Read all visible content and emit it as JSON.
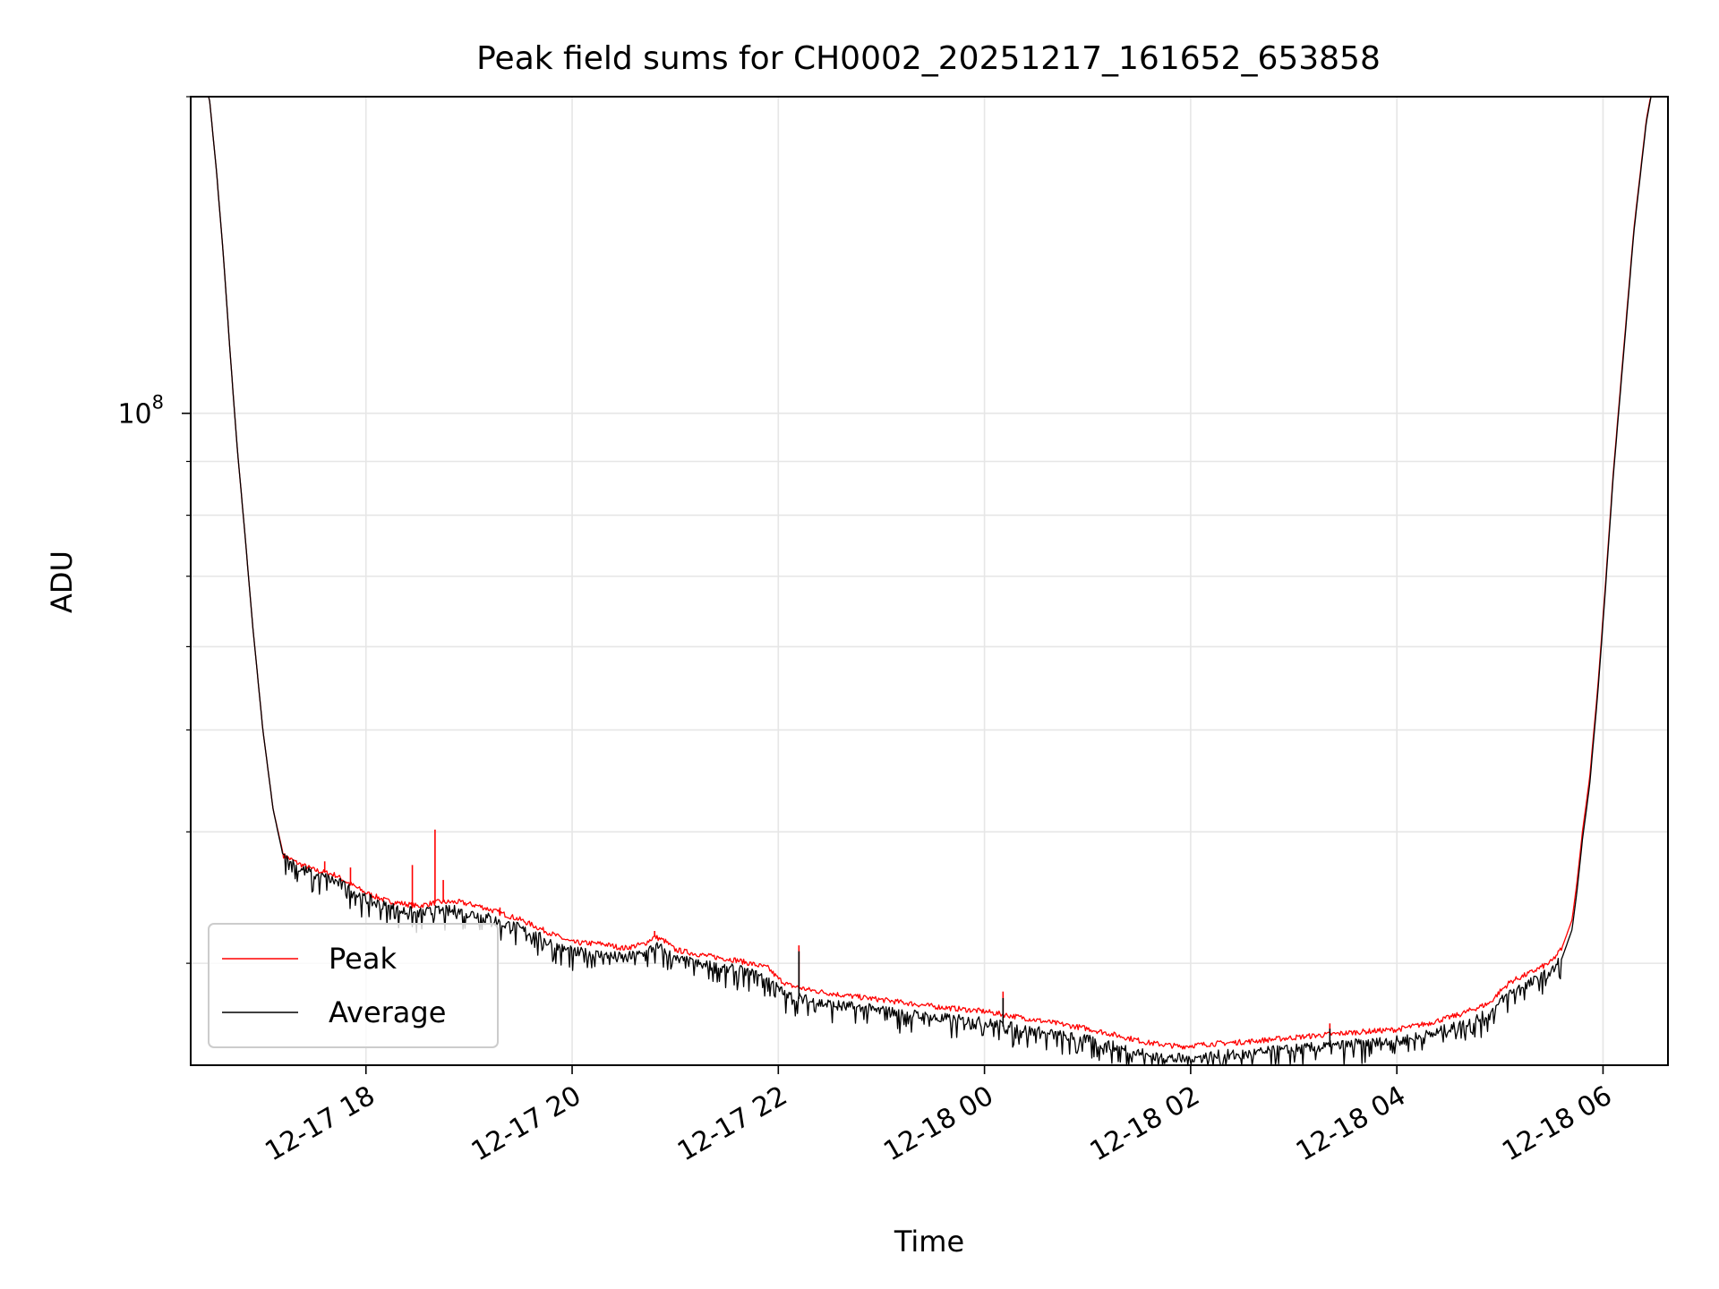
{
  "chart_data": {
    "type": "line",
    "title": "Peak field sums for CH0002_20251217_161652_653858",
    "xlabel": "Time",
    "ylabel": "ADU",
    "yscale": "log",
    "ylim": [
      24000000,
      200000000
    ],
    "xlim_hours": [
      16.3,
      30.63
    ],
    "x_unit": "hours since 2025-12-17 00:00",
    "grid": true,
    "legend_position": "lower-left",
    "x_ticks": [
      {
        "hour": 18,
        "label": "12-17 18"
      },
      {
        "hour": 20,
        "label": "12-17 20"
      },
      {
        "hour": 22,
        "label": "12-17 22"
      },
      {
        "hour": 24,
        "label": "12-18 00"
      },
      {
        "hour": 26,
        "label": "12-18 02"
      },
      {
        "hour": 28,
        "label": "12-18 04"
      },
      {
        "hour": 30,
        "label": "12-18 06"
      }
    ],
    "y_ticks": [
      {
        "value": 100000000,
        "label_base": "10",
        "label_exp": "8"
      }
    ],
    "y_minor_ticks": [
      30000000,
      40000000,
      50000000,
      60000000,
      70000000,
      80000000,
      90000000,
      200000000
    ],
    "series": [
      {
        "name": "Peak",
        "color": "#ff0000",
        "points": [
          [
            16.3,
            210000000
          ],
          [
            16.48,
            200000000
          ],
          [
            16.55,
            170000000
          ],
          [
            16.62,
            140000000
          ],
          [
            16.68,
            115000000
          ],
          [
            16.75,
            93000000
          ],
          [
            16.82,
            78000000
          ],
          [
            16.9,
            63000000
          ],
          [
            17.0,
            50000000
          ],
          [
            17.1,
            42000000
          ],
          [
            17.2,
            38000000
          ],
          [
            17.35,
            37300000
          ],
          [
            17.5,
            36800000
          ],
          [
            17.7,
            36400000
          ],
          [
            17.8,
            35900000
          ],
          [
            18.0,
            35000000
          ],
          [
            18.2,
            34400000
          ],
          [
            18.5,
            34000000
          ],
          [
            18.7,
            34300000
          ],
          [
            18.9,
            34300000
          ],
          [
            19.1,
            34000000
          ],
          [
            19.3,
            33500000
          ],
          [
            19.5,
            33000000
          ],
          [
            19.8,
            32000000
          ],
          [
            20.0,
            31400000
          ],
          [
            20.3,
            31300000
          ],
          [
            20.5,
            31000000
          ],
          [
            20.7,
            31300000
          ],
          [
            20.8,
            31800000
          ],
          [
            20.9,
            31500000
          ],
          [
            21.0,
            30900000
          ],
          [
            21.3,
            30500000
          ],
          [
            21.6,
            30200000
          ],
          [
            21.9,
            29700000
          ],
          [
            22.0,
            29000000
          ],
          [
            22.1,
            28600000
          ],
          [
            22.3,
            28300000
          ],
          [
            22.6,
            28000000
          ],
          [
            23.0,
            27700000
          ],
          [
            23.5,
            27300000
          ],
          [
            24.0,
            27000000
          ],
          [
            24.3,
            26700000
          ],
          [
            24.6,
            26400000
          ],
          [
            25.0,
            26000000
          ],
          [
            25.3,
            25600000
          ],
          [
            25.6,
            25200000
          ],
          [
            25.9,
            25000000
          ],
          [
            26.2,
            25150000
          ],
          [
            26.5,
            25250000
          ],
          [
            26.8,
            25400000
          ],
          [
            27.2,
            25600000
          ],
          [
            27.6,
            25800000
          ],
          [
            28.0,
            25950000
          ],
          [
            28.3,
            26300000
          ],
          [
            28.6,
            26800000
          ],
          [
            28.9,
            27500000
          ],
          [
            29.0,
            28200000
          ],
          [
            29.1,
            28800000
          ],
          [
            29.3,
            29400000
          ],
          [
            29.5,
            30100000
          ],
          [
            29.6,
            31000000
          ],
          [
            29.7,
            33000000
          ],
          [
            29.75,
            36000000
          ],
          [
            29.8,
            40000000
          ],
          [
            29.87,
            45000000
          ],
          [
            29.95,
            55000000
          ],
          [
            30.02,
            68000000
          ],
          [
            30.1,
            88000000
          ],
          [
            30.2,
            115000000
          ],
          [
            30.3,
            150000000
          ],
          [
            30.42,
            190000000
          ],
          [
            30.5,
            210000000
          ],
          [
            30.63,
            210000000
          ]
        ]
      },
      {
        "name": "Average",
        "color": "#000000",
        "points": [
          [
            16.3,
            210000000
          ],
          [
            16.48,
            200000000
          ],
          [
            16.55,
            170000000
          ],
          [
            16.62,
            140000000
          ],
          [
            16.68,
            115000000
          ],
          [
            16.75,
            93000000
          ],
          [
            16.82,
            78000000
          ],
          [
            16.9,
            63000000
          ],
          [
            17.0,
            50000000
          ],
          [
            17.1,
            42000000
          ],
          [
            17.2,
            37800000
          ],
          [
            17.35,
            36900000
          ],
          [
            17.5,
            36400000
          ],
          [
            17.7,
            35900000
          ],
          [
            17.8,
            35400000
          ],
          [
            18.0,
            34500000
          ],
          [
            18.2,
            33900000
          ],
          [
            18.5,
            33400000
          ],
          [
            18.7,
            33600000
          ],
          [
            18.9,
            33600000
          ],
          [
            19.1,
            33300000
          ],
          [
            19.3,
            32800000
          ],
          [
            19.5,
            32300000
          ],
          [
            19.8,
            31300000
          ],
          [
            20.0,
            30700000
          ],
          [
            20.3,
            30500000
          ],
          [
            20.5,
            30300000
          ],
          [
            20.7,
            30600000
          ],
          [
            20.8,
            31100000
          ],
          [
            20.9,
            30800000
          ],
          [
            21.0,
            30200000
          ],
          [
            21.3,
            29800000
          ],
          [
            21.6,
            29500000
          ],
          [
            21.9,
            29000000
          ],
          [
            22.0,
            28300000
          ],
          [
            22.1,
            27900000
          ],
          [
            22.3,
            27600000
          ],
          [
            22.6,
            27300000
          ],
          [
            23.0,
            27000000
          ],
          [
            23.5,
            26600000
          ],
          [
            24.0,
            26300000
          ],
          [
            24.3,
            26000000
          ],
          [
            24.6,
            25700000
          ],
          [
            25.0,
            25300000
          ],
          [
            25.3,
            24900000
          ],
          [
            25.6,
            24500000
          ],
          [
            25.9,
            24300000
          ],
          [
            26.2,
            24450000
          ],
          [
            26.5,
            24550000
          ],
          [
            26.8,
            24700000
          ],
          [
            27.2,
            24900000
          ],
          [
            27.6,
            25100000
          ],
          [
            28.0,
            25250000
          ],
          [
            28.3,
            25600000
          ],
          [
            28.6,
            26100000
          ],
          [
            28.9,
            26800000
          ],
          [
            29.0,
            27500000
          ],
          [
            29.1,
            28100000
          ],
          [
            29.3,
            28700000
          ],
          [
            29.5,
            29400000
          ],
          [
            29.6,
            30300000
          ],
          [
            29.7,
            32300000
          ],
          [
            29.75,
            35300000
          ],
          [
            29.8,
            39300000
          ],
          [
            29.87,
            44300000
          ],
          [
            29.95,
            54300000
          ],
          [
            30.02,
            67300000
          ],
          [
            30.1,
            87300000
          ],
          [
            30.2,
            114000000
          ],
          [
            30.3,
            149000000
          ],
          [
            30.42,
            189000000
          ],
          [
            30.5,
            209000000
          ],
          [
            30.63,
            210000000
          ]
        ]
      }
    ],
    "spikes": [
      {
        "series": "Peak",
        "hour": 17.6,
        "value": 37500000
      },
      {
        "series": "Peak",
        "hour": 17.85,
        "value": 37000000
      },
      {
        "series": "Peak",
        "hour": 18.45,
        "value": 37200000
      },
      {
        "series": "Peak",
        "hour": 18.67,
        "value": 40200000
      },
      {
        "series": "Peak",
        "hour": 18.75,
        "value": 36000000
      },
      {
        "series": "Peak",
        "hour": 19.3,
        "value": 33900000
      },
      {
        "series": "Peak",
        "hour": 20.8,
        "value": 32200000
      },
      {
        "series": "Peak",
        "hour": 22.2,
        "value": 31200000
      },
      {
        "series": "Average",
        "hour": 22.2,
        "value": 30800000
      },
      {
        "series": "Peak",
        "hour": 24.18,
        "value": 28200000
      },
      {
        "series": "Average",
        "hour": 24.18,
        "value": 27800000
      },
      {
        "series": "Peak",
        "hour": 27.35,
        "value": 26300000
      },
      {
        "series": "Average",
        "hour": 27.35,
        "value": 26000000
      }
    ]
  }
}
